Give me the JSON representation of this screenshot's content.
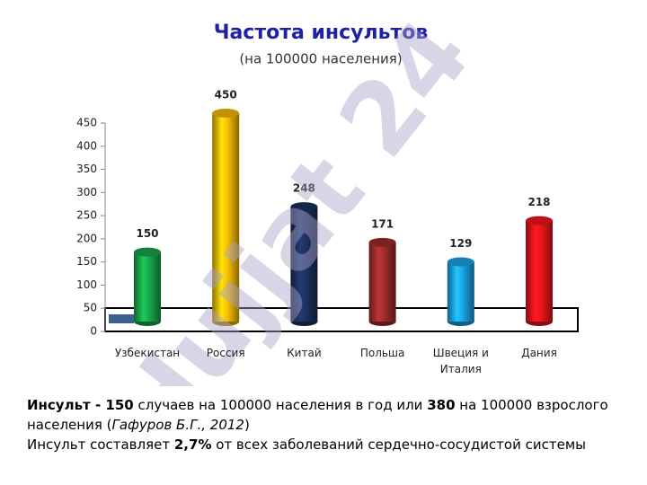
{
  "chart_data": {
    "type": "bar",
    "title": "Частота инсультов",
    "subtitle": "(на 100000 населения)",
    "categories": [
      "Узбекистан",
      "Россия",
      "Китай",
      "Польша",
      "Швеция и Италия",
      "Дания"
    ],
    "values": [
      150,
      450,
      248,
      171,
      129,
      218
    ],
    "colors": [
      "#17a349",
      "#f2b705",
      "#1c2f5c",
      "#9a2b2b",
      "#19a0e0",
      "#e8141c"
    ],
    "ylim": [
      0,
      450
    ],
    "yticks": [
      0,
      50,
      100,
      150,
      200,
      250,
      300,
      350,
      400,
      450
    ]
  },
  "watermark": "Hujjat 24",
  "footnote": [
    [
      "Инсульт - 150",
      " случаев на 100000 населения в год или ",
      "380",
      " на 100000 взрослого населения (",
      "Гафуров Б.Г., 2012",
      ")"
    ],
    [
      "Инсульт составляет ",
      "2,7%",
      " от всех заболеваний сердечно-сосудистой системы"
    ]
  ]
}
